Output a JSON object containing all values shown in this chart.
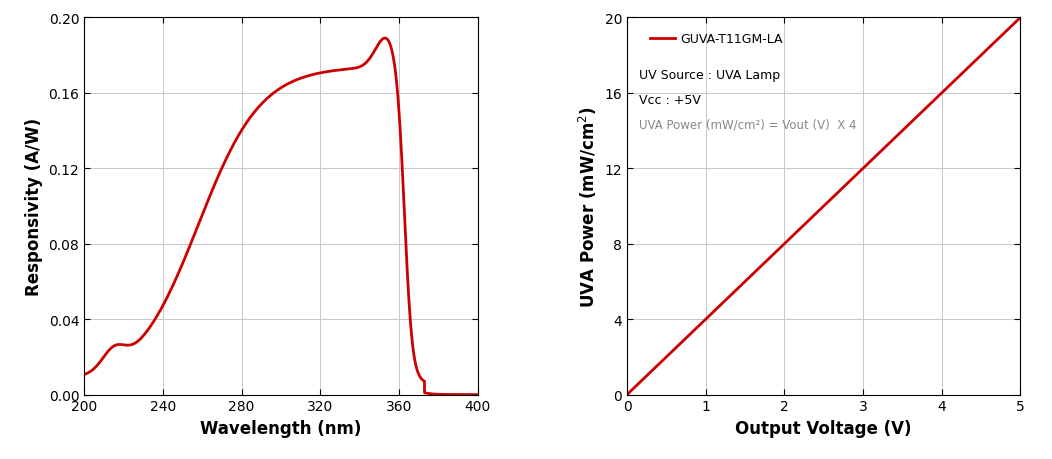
{
  "plot1": {
    "xlabel": "Wavelength (nm)",
    "ylabel": "Responsivity (A/W)",
    "xlim": [
      200,
      400
    ],
    "ylim": [
      0.0,
      0.2
    ],
    "xticks": [
      200,
      240,
      280,
      320,
      360,
      400
    ],
    "yticks": [
      0.0,
      0.04,
      0.08,
      0.12,
      0.16,
      0.2
    ],
    "line_color": "#cc0000",
    "line_width": 2.0
  },
  "plot2": {
    "xlabel": "Output Voltage (V)",
    "ylabel": "UVA Power (mW/cm$^2$)",
    "xlim": [
      0,
      5
    ],
    "ylim": [
      0,
      20
    ],
    "xticks": [
      0,
      1,
      2,
      3,
      4,
      5
    ],
    "yticks": [
      0,
      4,
      8,
      12,
      16,
      20
    ],
    "line_color": "#cc0000",
    "line_width": 2.0,
    "legend_label": "GUVA-T11GM-LA",
    "ann1": "UV Source : UVA Lamp",
    "ann2": "Vcc : +5V",
    "ann3": "UVA Power (mW/cm²) = Vout (V)  X 4"
  },
  "background_color": "#ffffff",
  "grid_color": "#c8c8c8",
  "tick_fontsize": 10,
  "label_fontsize": 12,
  "legend_fontsize": 9,
  "ann_fontsize": 9,
  "ann3_fontsize": 8.5
}
